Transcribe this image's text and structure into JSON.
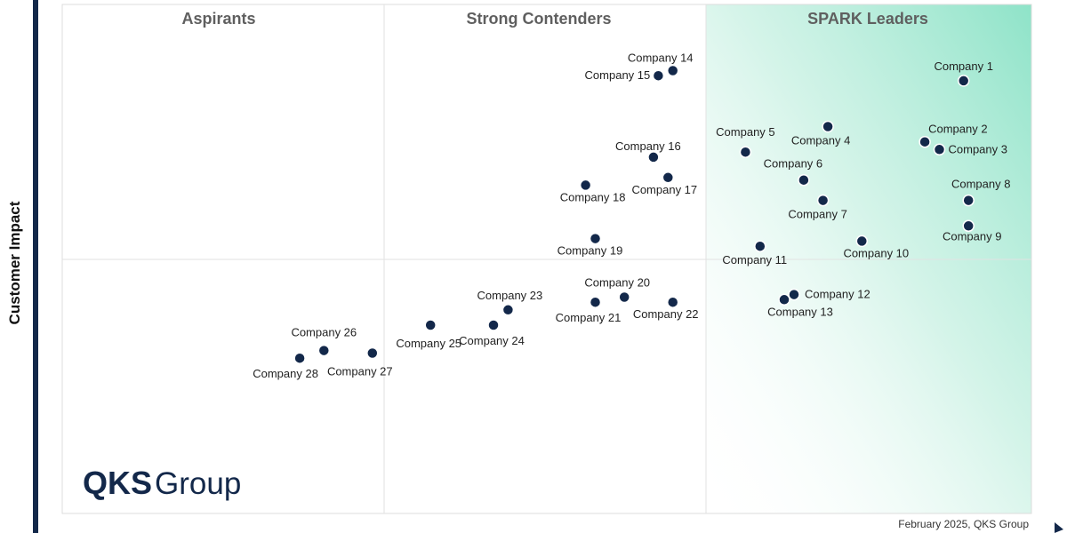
{
  "chart_data": {
    "type": "scatter",
    "ylabel": "Customer Impact",
    "quadrants": [
      "Aspirants",
      "Strong Contenders",
      "SPARK Leaders"
    ],
    "points": [
      {
        "name": "Company 1",
        "x": 93,
        "y": 85
      },
      {
        "name": "Company 2",
        "x": 89,
        "y": 73
      },
      {
        "name": "Company 3",
        "x": 90.5,
        "y": 71.5
      },
      {
        "name": "Company 4",
        "x": 79,
        "y": 76
      },
      {
        "name": "Company 5",
        "x": 70.5,
        "y": 71
      },
      {
        "name": "Company 6",
        "x": 76.5,
        "y": 65.5
      },
      {
        "name": "Company 7",
        "x": 78.5,
        "y": 61.5
      },
      {
        "name": "Company 8",
        "x": 93.5,
        "y": 61.5
      },
      {
        "name": "Company 9",
        "x": 93.5,
        "y": 56.5
      },
      {
        "name": "Company 10",
        "x": 82.5,
        "y": 53.5
      },
      {
        "name": "Company 11",
        "x": 72,
        "y": 52.5
      },
      {
        "name": "Company 12",
        "x": 75.5,
        "y": 43
      },
      {
        "name": "Company 13",
        "x": 74.5,
        "y": 42
      },
      {
        "name": "Company 14",
        "x": 63,
        "y": 87
      },
      {
        "name": "Company 15",
        "x": 61.5,
        "y": 86
      },
      {
        "name": "Company 16",
        "x": 61,
        "y": 70
      },
      {
        "name": "Company 17",
        "x": 62.5,
        "y": 66
      },
      {
        "name": "Company 18",
        "x": 54,
        "y": 64.5
      },
      {
        "name": "Company 19",
        "x": 55,
        "y": 54
      },
      {
        "name": "Company 20",
        "x": 58,
        "y": 42.5
      },
      {
        "name": "Company 21",
        "x": 55,
        "y": 41.5
      },
      {
        "name": "Company 22",
        "x": 63,
        "y": 41.5
      },
      {
        "name": "Company 23",
        "x": 46,
        "y": 40
      },
      {
        "name": "Company 24",
        "x": 44.5,
        "y": 37
      },
      {
        "name": "Company 25",
        "x": 38,
        "y": 37
      },
      {
        "name": "Company 26",
        "x": 27,
        "y": 32
      },
      {
        "name": "Company 27",
        "x": 32,
        "y": 31.5
      },
      {
        "name": "Company 28",
        "x": 24.5,
        "y": 30.5
      }
    ],
    "grid": true,
    "colors": {
      "point": "#13284a",
      "leaders_gradient": "#8ee3c8"
    }
  },
  "branding": {
    "logo_bold": "QKS",
    "logo_regular": "Group"
  },
  "footer": {
    "credit": "February 2025, QKS Group"
  }
}
